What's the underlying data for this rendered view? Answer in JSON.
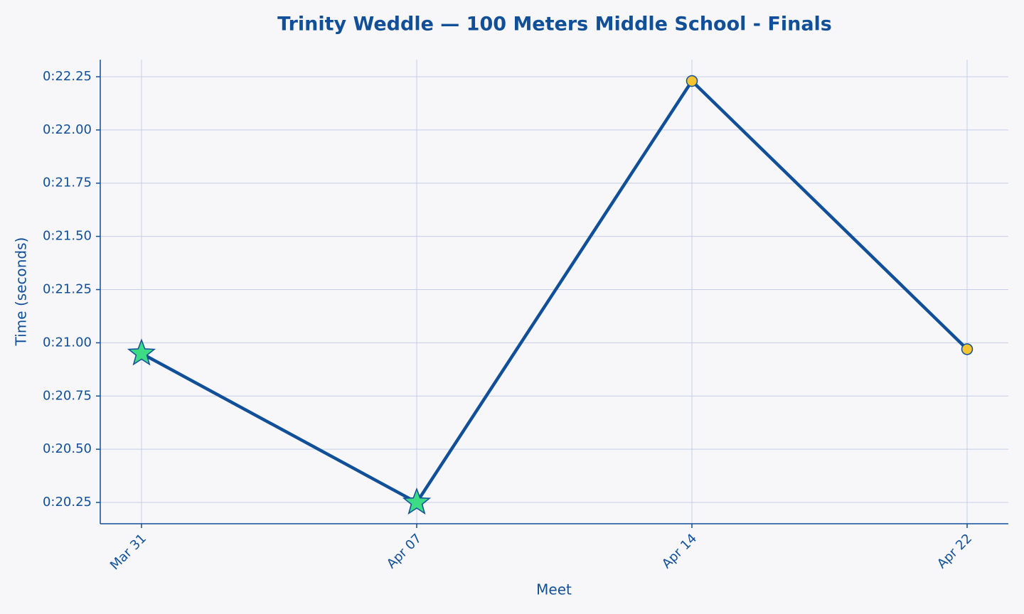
{
  "chart_data": {
    "type": "line",
    "title": "Trinity Weddle — 100 Meters Middle School - Finals",
    "x_label": "Meet",
    "y_label": "Time (seconds)",
    "categories": [
      "Mar 31",
      "Apr 07",
      "Apr 14",
      "Apr 22"
    ],
    "series": [
      {
        "color": "#114f98",
        "values": [
          20.95,
          20.25,
          22.23,
          20.97
        ],
        "markers": [
          "star",
          "star",
          "circle",
          "circle"
        ],
        "marker_colors": [
          "#3ddc84",
          "#3ddc84",
          "#f5c431",
          "#f5c431"
        ]
      }
    ],
    "ylim": [
      20.15,
      22.33
    ],
    "yticks": [
      {
        "value": 20.25,
        "label": "0:20.25"
      },
      {
        "value": 20.5,
        "label": "0:20.50"
      },
      {
        "value": 20.75,
        "label": "0:20.75"
      },
      {
        "value": 21.0,
        "label": "0:21.00"
      },
      {
        "value": 21.25,
        "label": "0:21.25"
      },
      {
        "value": 21.5,
        "label": "0:21.50"
      },
      {
        "value": 21.75,
        "label": "0:21.75"
      },
      {
        "value": 22.0,
        "label": "0:22.00"
      },
      {
        "value": 22.25,
        "label": "0:22.25"
      }
    ],
    "grid": true
  }
}
